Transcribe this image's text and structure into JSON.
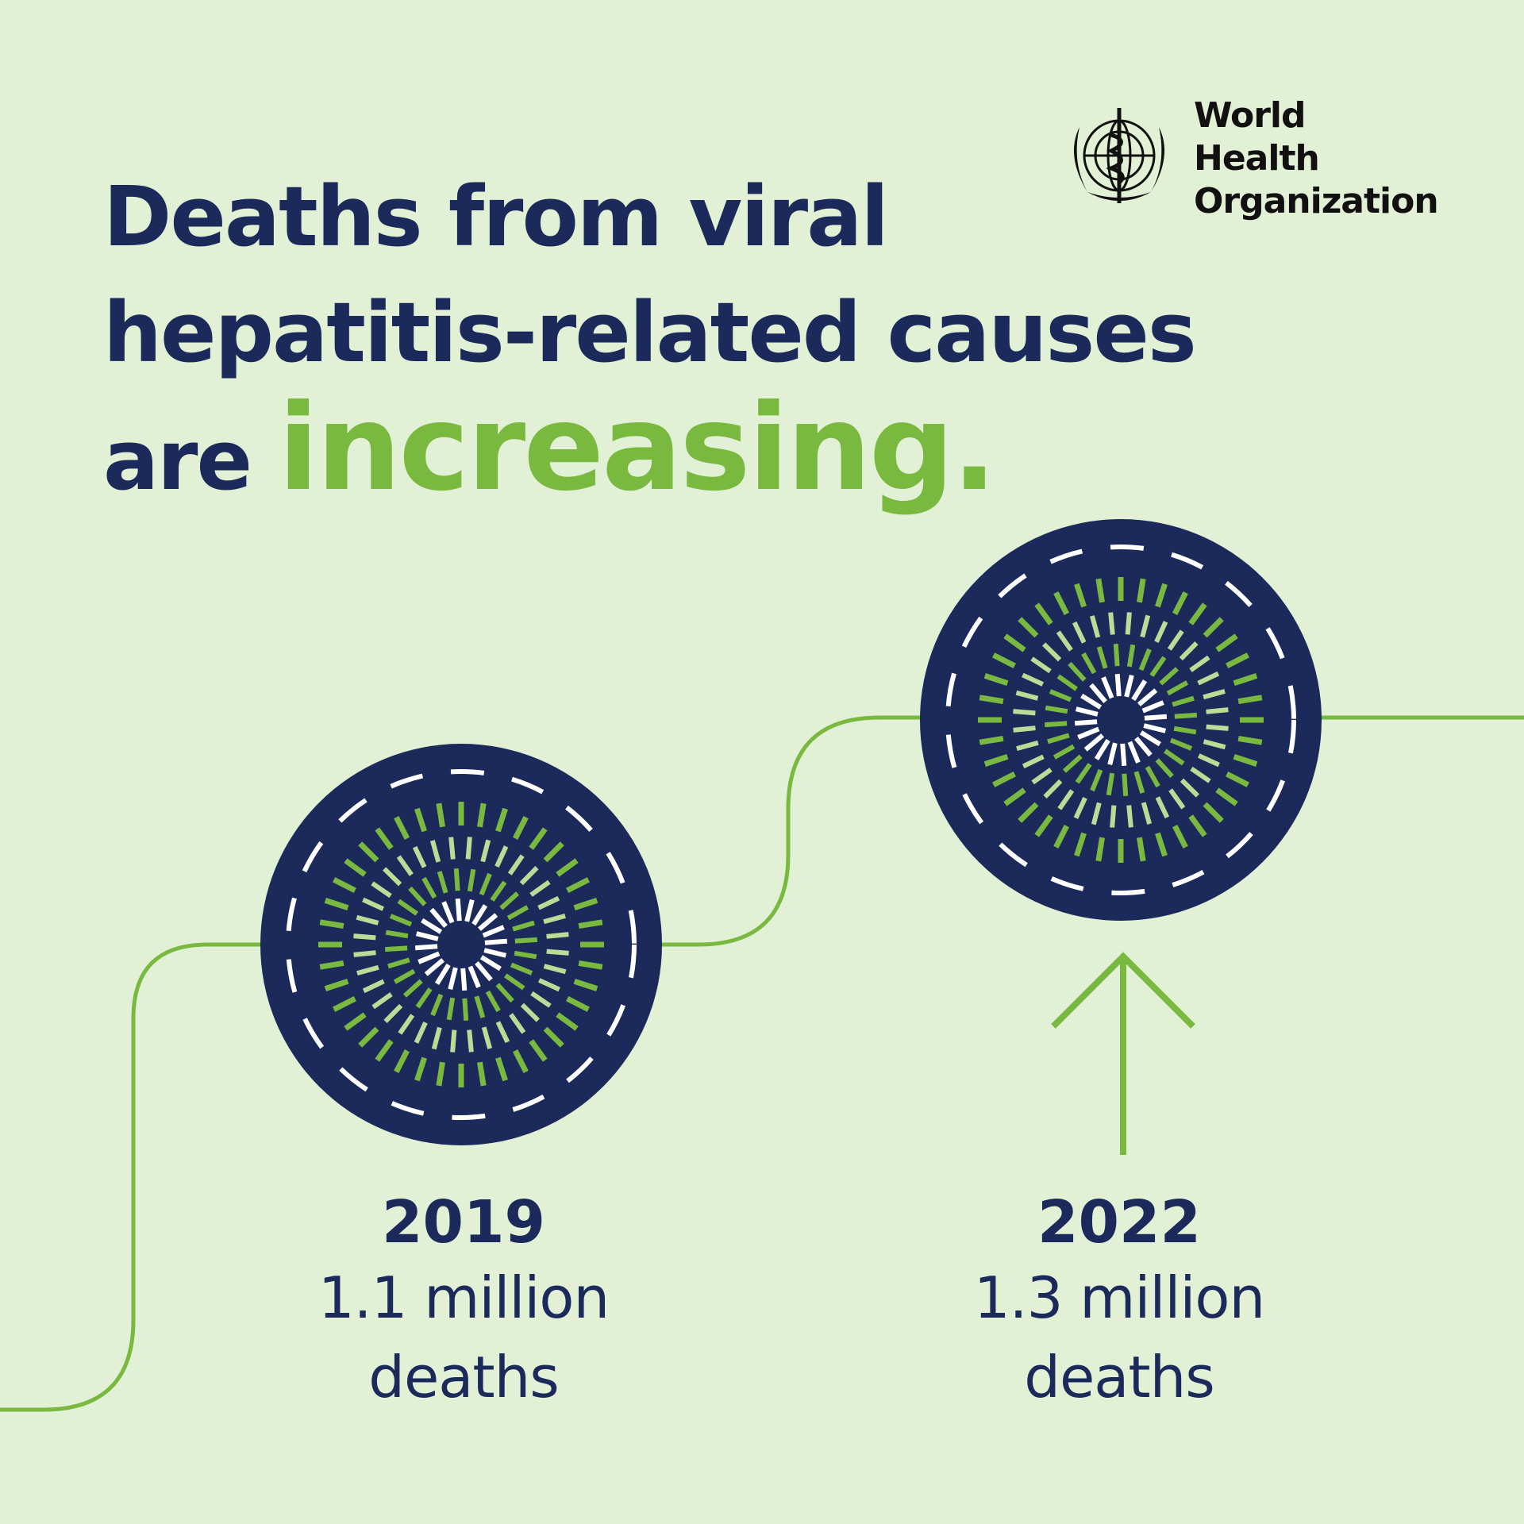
{
  "headline": {
    "line1": "Deaths from viral",
    "line2": "hepatitis-related causes",
    "line3_prefix": "are",
    "line3_accent": "increasing."
  },
  "logo": {
    "line1": "World Health",
    "line2": "Organization"
  },
  "stats": [
    {
      "year": "2019",
      "value": "1.1 million",
      "unit": "deaths"
    },
    {
      "year": "2022",
      "value": "1.3 million",
      "unit": "deaths"
    }
  ],
  "colors": {
    "background": "#e2f0d5",
    "navy": "#1b2a5a",
    "green": "#7ab940",
    "light_green": "#b9dc96",
    "white": "#ffffff"
  },
  "icons": [
    "who-emblem-icon",
    "virus-circle-icon",
    "up-arrow-icon"
  ]
}
